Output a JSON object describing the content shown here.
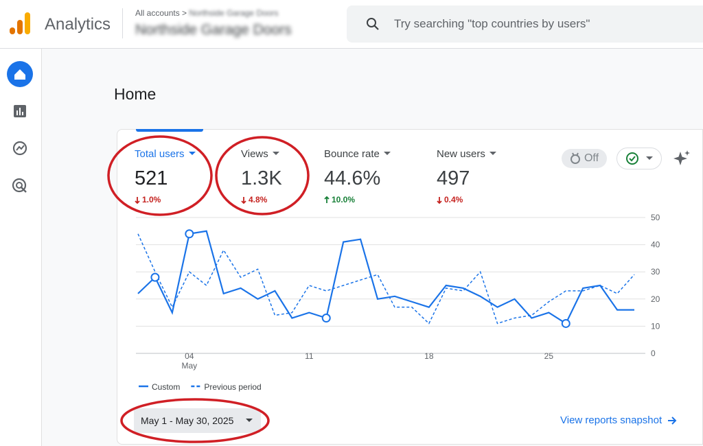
{
  "header": {
    "product": "Analytics",
    "breadcrumb": "All accounts",
    "account_parent": "Northside Garage Doors",
    "account": "Northside Garage Doors",
    "search_placeholder": "Try searching \"top countries by users\""
  },
  "page_title": "Home",
  "metrics": [
    {
      "label": "Total users",
      "value": "521",
      "change": "1.0%",
      "trend": "down",
      "selected": true
    },
    {
      "label": "Views",
      "value": "1.3K",
      "change": "4.8%",
      "trend": "down",
      "selected": false
    },
    {
      "label": "Bounce rate",
      "value": "44.6%",
      "change": "10.0%",
      "trend": "up",
      "selected": false
    },
    {
      "label": "New users",
      "value": "497",
      "change": "0.4%",
      "trend": "down",
      "selected": false
    }
  ],
  "toggle": "Off",
  "chart_data": {
    "type": "line",
    "categories": [
      null,
      null,
      null,
      "04",
      null,
      null,
      null,
      null,
      null,
      null,
      "11",
      null,
      null,
      null,
      null,
      null,
      null,
      "18",
      null,
      null,
      null,
      null,
      null,
      null,
      "25",
      null,
      null,
      null,
      null,
      null
    ],
    "month_label": "May",
    "series": [
      {
        "name": "Custom",
        "color": "#1a73e8",
        "style": "solid",
        "values": [
          22,
          28,
          15,
          44,
          45,
          22,
          24,
          20,
          23,
          13,
          15,
          13,
          41,
          42,
          20,
          21,
          19,
          17,
          25,
          24,
          21,
          17,
          20,
          13,
          15,
          11,
          24,
          25,
          16,
          16
        ],
        "anomalies": [
          1,
          3,
          11,
          25
        ]
      },
      {
        "name": "Previous period",
        "color": "#1a73e8",
        "style": "dashed",
        "values": [
          44,
          30,
          17,
          30,
          25,
          38,
          28,
          31,
          14,
          15,
          25,
          23,
          25,
          27,
          29,
          17,
          17,
          11,
          24,
          23,
          30,
          11,
          13,
          14,
          19,
          23,
          23,
          25,
          22,
          29
        ]
      }
    ],
    "ylim": [
      0,
      50
    ],
    "yticks": [
      0,
      10,
      20,
      30,
      40,
      50
    ],
    "grid": true,
    "y_axis_side": "right"
  },
  "date_range": "May 1 - May 30, 2025",
  "link": "View reports snapshot"
}
